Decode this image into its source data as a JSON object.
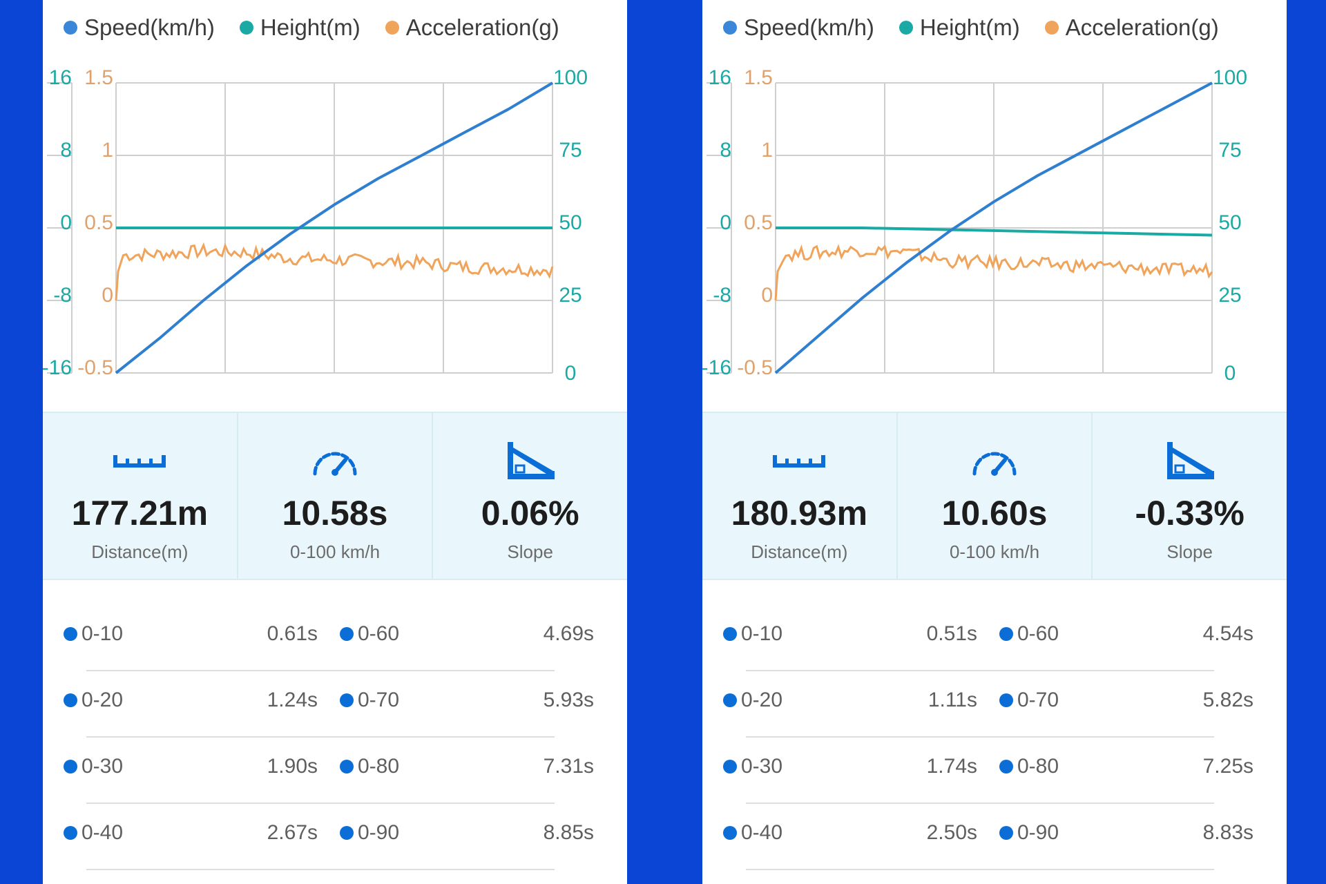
{
  "colors": {
    "speed": "#2f7fd0",
    "height": "#1aa9a4",
    "acceleration": "#f0a35a",
    "background": "#0a45d6",
    "stats_bg": "#e9f7fc",
    "icon": "#0a6ed6"
  },
  "panels": [
    {
      "legend": [
        {
          "label": "Speed(km/h)",
          "color": "#3a86d8"
        },
        {
          "label": "Height(m)",
          "color": "#1aa9a4"
        },
        {
          "label": "Acceleration(g)",
          "color": "#f0a35a"
        }
      ],
      "chart_data": {
        "type": "line",
        "x": [
          0,
          1.06,
          2.12,
          3.17,
          4.23,
          5.29,
          6.35,
          7.41,
          8.46,
          9.52,
          10.58
        ],
        "series": [
          {
            "name": "Speed(km/h)",
            "axis": "right",
            "values": [
              0,
              12,
              25,
              37,
              48,
              58,
              67,
              75,
              83,
              91,
              100
            ]
          }
        ],
        "acceleration_trace_g": [
          0.31,
          0.32,
          0.34,
          0.33,
          0.29,
          0.28,
          0.27,
          0.26,
          0.23,
          0.22,
          0.21
        ],
        "height_trace_m": [
          0.0,
          0.0,
          0.0,
          0.0,
          0.0,
          0.0,
          0.0,
          0.0,
          0.0,
          0.0,
          0.0
        ],
        "left_axis_height": {
          "ticks": [
            "16",
            "8",
            "0",
            "-8",
            "-16"
          ],
          "range": [
            -16,
            16
          ]
        },
        "left_axis_acceleration": {
          "ticks": [
            "1.5",
            "1",
            "0.5",
            "0",
            "-0.5"
          ],
          "range": [
            -0.5,
            1.5
          ]
        },
        "right_axis_speed": {
          "ticks": [
            "100",
            "75",
            "50",
            "25",
            "0"
          ],
          "range": [
            0,
            100
          ]
        },
        "grid": true
      },
      "stats": {
        "distance": {
          "value": "177.21m",
          "label": "Distance(m)",
          "icon": "ruler-icon"
        },
        "time": {
          "value": "10.58s",
          "label": "0-100 km/h",
          "icon": "speedometer-icon"
        },
        "slope": {
          "value": "0.06%",
          "label": "Slope",
          "icon": "slope-icon"
        }
      },
      "splits": [
        {
          "l_label": "0-10",
          "l_time": "0.61s",
          "r_label": "0-60",
          "r_time": "4.69s"
        },
        {
          "l_label": "0-20",
          "l_time": "1.24s",
          "r_label": "0-70",
          "r_time": "5.93s"
        },
        {
          "l_label": "0-30",
          "l_time": "1.90s",
          "r_label": "0-80",
          "r_time": "7.31s"
        },
        {
          "l_label": "0-40",
          "l_time": "2.67s",
          "r_label": "0-90",
          "r_time": "8.85s"
        }
      ]
    },
    {
      "legend": [
        {
          "label": "Speed(km/h)",
          "color": "#3a86d8"
        },
        {
          "label": "Height(m)",
          "color": "#1aa9a4"
        },
        {
          "label": "Acceleration(g)",
          "color": "#f0a35a"
        }
      ],
      "chart_data": {
        "type": "line",
        "x": [
          0,
          1.06,
          2.12,
          3.18,
          4.24,
          5.3,
          6.36,
          7.42,
          8.48,
          9.54,
          10.6
        ],
        "series": [
          {
            "name": "Speed(km/h)",
            "axis": "right",
            "values": [
              0,
              13,
              26,
              38,
              49,
              59,
              68,
              76,
              84,
              92,
              100
            ]
          }
        ],
        "acceleration_trace_g": [
          0.31,
          0.33,
          0.35,
          0.33,
          0.27,
          0.26,
          0.25,
          0.24,
          0.23,
          0.21,
          0.21
        ],
        "height_trace_m": [
          0.0,
          0.0,
          0.0,
          -0.1,
          -0.2,
          -0.3,
          -0.4,
          -0.5,
          -0.6,
          -0.7,
          -0.8
        ],
        "left_axis_height": {
          "ticks": [
            "16",
            "8",
            "0",
            "-8",
            "-16"
          ],
          "range": [
            -16,
            16
          ]
        },
        "left_axis_acceleration": {
          "ticks": [
            "1.5",
            "1",
            "0.5",
            "0",
            "-0.5"
          ],
          "range": [
            -0.5,
            1.5
          ]
        },
        "right_axis_speed": {
          "ticks": [
            "100",
            "75",
            "50",
            "25",
            "0"
          ],
          "range": [
            0,
            100
          ]
        },
        "grid": true
      },
      "stats": {
        "distance": {
          "value": "180.93m",
          "label": "Distance(m)",
          "icon": "ruler-icon"
        },
        "time": {
          "value": "10.60s",
          "label": "0-100 km/h",
          "icon": "speedometer-icon"
        },
        "slope": {
          "value": "-0.33%",
          "label": "Slope",
          "icon": "slope-icon"
        }
      },
      "splits": [
        {
          "l_label": "0-10",
          "l_time": "0.51s",
          "r_label": "0-60",
          "r_time": "4.54s"
        },
        {
          "l_label": "0-20",
          "l_time": "1.11s",
          "r_label": "0-70",
          "r_time": "5.82s"
        },
        {
          "l_label": "0-30",
          "l_time": "1.74s",
          "r_label": "0-80",
          "r_time": "7.25s"
        },
        {
          "l_label": "0-40",
          "l_time": "2.50s",
          "r_label": "0-90",
          "r_time": "8.83s"
        }
      ]
    }
  ]
}
